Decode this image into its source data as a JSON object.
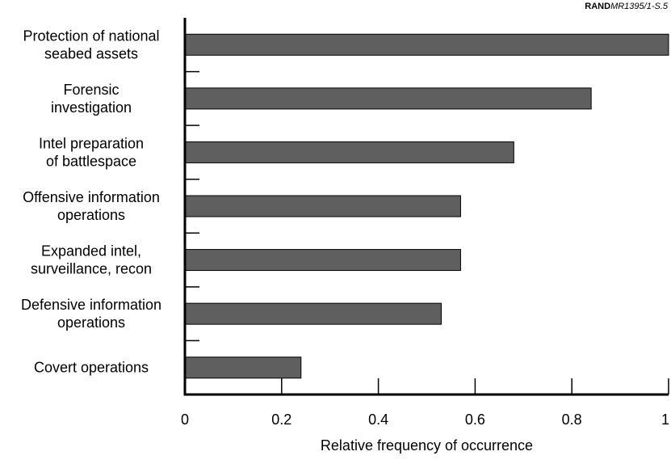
{
  "source_note": {
    "org": "RAND",
    "doc_id": "MR1395/1-S.5"
  },
  "chart_data": {
    "type": "bar",
    "orientation": "horizontal",
    "categories": [
      [
        "Protection of national",
        "seabed assets"
      ],
      [
        "Forensic",
        "investigation"
      ],
      [
        "Intel preparation",
        "of battlespace"
      ],
      [
        "Offensive information",
        "operations"
      ],
      [
        "Expanded intel,",
        "surveillance, recon"
      ],
      [
        "Defensive information",
        "operations"
      ],
      [
        "Covert operations"
      ]
    ],
    "values": [
      1.0,
      0.84,
      0.68,
      0.57,
      0.57,
      0.53,
      0.24
    ],
    "xlabel": "Relative frequency of occurrence",
    "xlim": [
      0,
      1
    ],
    "xticks": [
      0,
      0.2,
      0.4,
      0.6,
      0.8,
      1
    ],
    "xtick_labels": [
      "0",
      "0.2",
      "0.4",
      "0.6",
      "0.8",
      "1"
    ],
    "grid": false,
    "bar_color": "#5f5f5f",
    "bar_edge_color": "#000000"
  }
}
